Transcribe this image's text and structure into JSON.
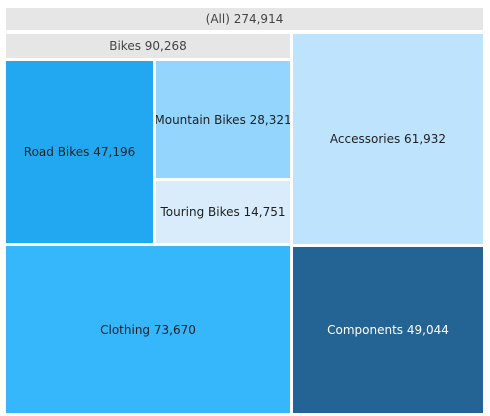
{
  "chart_data": {
    "type": "treemap",
    "root": {
      "label": "(All) 274,914",
      "name": "(All)",
      "value": 274914,
      "color": "#e6e6e6"
    },
    "groups": [
      {
        "label": "Bikes 90,268",
        "name": "Bikes",
        "value": 90268,
        "color": "#e6e6e6",
        "children": [
          {
            "label": "Road Bikes 47,196",
            "name": "Road Bikes",
            "value": 47196,
            "color": "#22a8f0"
          },
          {
            "label": "Mountain Bikes 28,321",
            "name": "Mountain Bikes",
            "value": 28321,
            "color": "#93d5fd"
          },
          {
            "label": "Touring Bikes 14,751",
            "name": "Touring Bikes",
            "value": 14751,
            "color": "#d8ecfb"
          }
        ]
      },
      {
        "label": "Accessories 61,932",
        "name": "Accessories",
        "value": 61932,
        "color": "#bee3fc",
        "children": []
      },
      {
        "label": "Clothing 73,670",
        "name": "Clothing",
        "value": 73670,
        "color": "#36b6fb",
        "children": []
      },
      {
        "label": "Components 49,044",
        "name": "Components",
        "value": 49044,
        "color": "#236494",
        "children": []
      }
    ]
  }
}
